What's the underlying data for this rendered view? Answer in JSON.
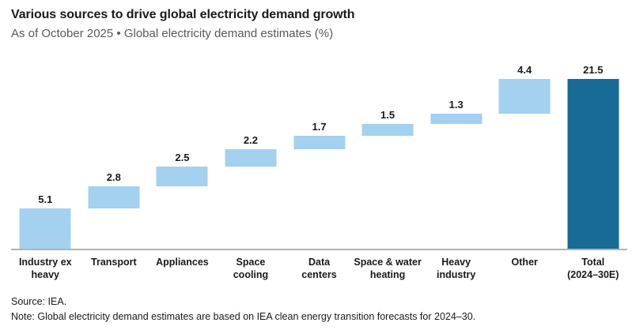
{
  "header": {
    "title": "Various sources to drive global electricity demand growth",
    "subtitle": "As of October 2025 • Global electricity demand estimates (%)"
  },
  "footer": {
    "source": "Source: IEA.",
    "note": "Note: Global electricity demand estimates are based on IEA clean energy transition forecasts for 2024–30."
  },
  "colors": {
    "bar_light": "#a3d1ef",
    "bar_dark": "#176b96",
    "axis_line": "#b3b3b3",
    "title_text": "#1a1a1a",
    "subtitle_text": "#595959"
  },
  "chart_data": {
    "type": "bar",
    "subtype": "waterfall",
    "title": "Various sources to drive global electricity demand growth",
    "xlabel": "",
    "ylabel": "Global electricity demand estimates (%)",
    "ylim": [
      0,
      23.5
    ],
    "grid": false,
    "legend": false,
    "categories": [
      "Industry ex heavy",
      "Transport",
      "Appliances",
      "Space cooling",
      "Data centers",
      "Space & water heating",
      "Heavy industry",
      "Other",
      "Total (2024–30E)"
    ],
    "values": [
      5.1,
      2.8,
      2.5,
      2.2,
      1.7,
      1.5,
      1.3,
      4.4,
      21.5
    ],
    "bars": [
      {
        "label_lines": [
          "Industry ex",
          "heavy"
        ],
        "value": 5.1,
        "start": 0,
        "end": 5.1,
        "role": "component"
      },
      {
        "label_lines": [
          "Transport"
        ],
        "value": 2.8,
        "start": 5.1,
        "end": 7.9,
        "role": "component"
      },
      {
        "label_lines": [
          "Appliances"
        ],
        "value": 2.5,
        "start": 7.9,
        "end": 10.4,
        "role": "component"
      },
      {
        "label_lines": [
          "Space",
          "cooling"
        ],
        "value": 2.2,
        "start": 10.4,
        "end": 12.6,
        "role": "component"
      },
      {
        "label_lines": [
          "Data",
          "centers"
        ],
        "value": 1.7,
        "start": 12.6,
        "end": 14.3,
        "role": "component"
      },
      {
        "label_lines": [
          "Space & water",
          "heating"
        ],
        "value": 1.5,
        "start": 14.3,
        "end": 15.8,
        "role": "component"
      },
      {
        "label_lines": [
          "Heavy",
          "industry"
        ],
        "value": 1.3,
        "start": 15.8,
        "end": 17.1,
        "role": "component"
      },
      {
        "label_lines": [
          "Other"
        ],
        "value": 4.4,
        "start": 17.1,
        "end": 21.5,
        "role": "component"
      },
      {
        "label_lines": [
          "Total",
          "(2024–30E)"
        ],
        "value": 21.5,
        "start": 0,
        "end": 21.5,
        "role": "total"
      }
    ]
  }
}
